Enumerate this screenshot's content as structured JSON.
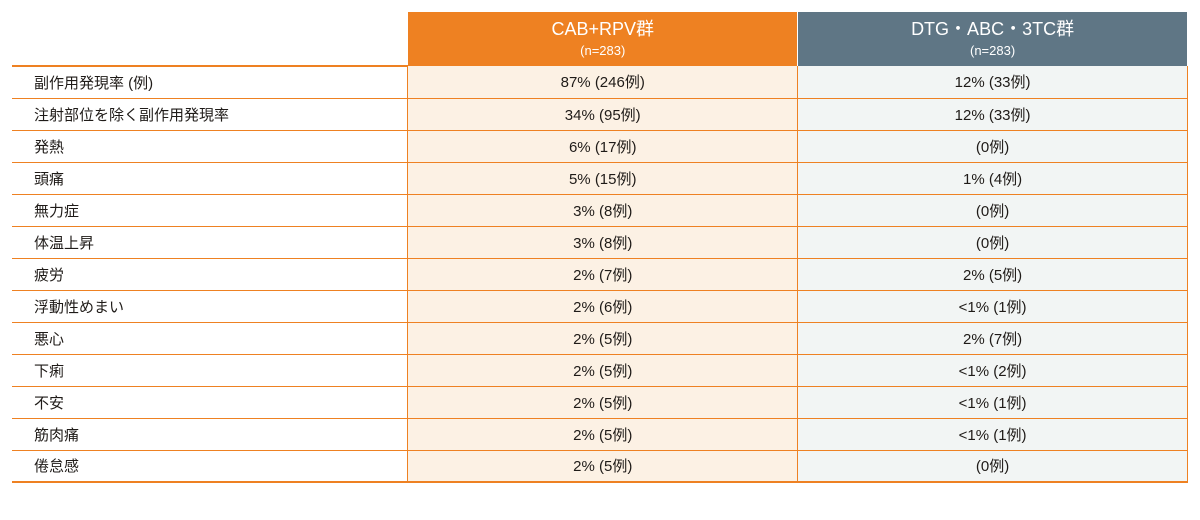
{
  "colors": {
    "header1_bg": "#ee8122",
    "header2_bg": "#5f7685",
    "col1_bg": "#fcf1e4",
    "col2_bg": "#f2f5f4",
    "border": "#ee8122",
    "text": "#1f1b18"
  },
  "headers": {
    "col1": {
      "title": "CAB+RPV群",
      "sub": "(n=283)"
    },
    "col2": {
      "title": "DTG・ABC・3TC群",
      "sub": "(n=283)"
    }
  },
  "rows": [
    {
      "label": "副作用発現率 (例)",
      "c1": "87% (246例)",
      "c2": "12% (33例)"
    },
    {
      "label": "注射部位を除く副作用発現率",
      "c1": "34% (95例)",
      "c2": "12% (33例)"
    },
    {
      "label": "発熱",
      "c1": "6% (17例)",
      "c2": "(0例)"
    },
    {
      "label": "頭痛",
      "c1": "5% (15例)",
      "c2": "1% (4例)"
    },
    {
      "label": "無力症",
      "c1": "3% (8例)",
      "c2": "(0例)"
    },
    {
      "label": "体温上昇",
      "c1": "3% (8例)",
      "c2": "(0例)"
    },
    {
      "label": "疲労",
      "c1": "2% (7例)",
      "c2": "2% (5例)"
    },
    {
      "label": "浮動性めまい",
      "c1": "2% (6例)",
      "c2": "<1% (1例)"
    },
    {
      "label": "悪心",
      "c1": "2% (5例)",
      "c2": "2% (7例)"
    },
    {
      "label": "下痢",
      "c1": "2% (5例)",
      "c2": "<1% (2例)"
    },
    {
      "label": "不安",
      "c1": "2% (5例)",
      "c2": "<1% (1例)"
    },
    {
      "label": "筋肉痛",
      "c1": "2% (5例)",
      "c2": "<1% (1例)"
    },
    {
      "label": "倦怠感",
      "c1": "2% (5例)",
      "c2": "(0例)"
    }
  ]
}
